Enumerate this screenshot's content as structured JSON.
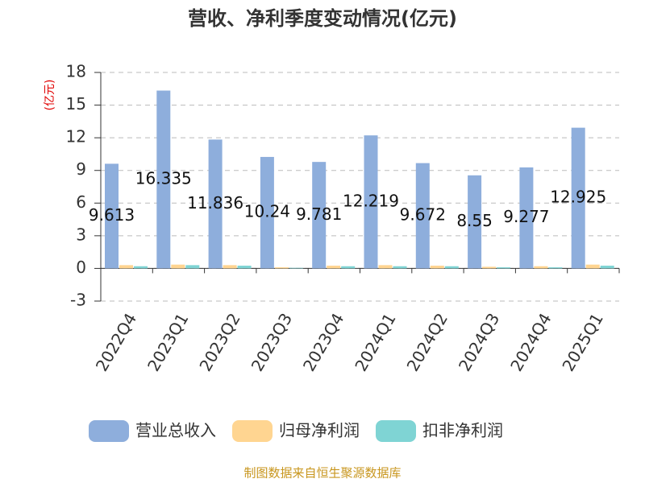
{
  "chart_data": {
    "type": "bar",
    "title": "营收、净利季度变动情况(亿元)",
    "y_unit": "(亿元)",
    "source": "制图数据来自恒生聚源数据库",
    "categories": [
      "2022Q4",
      "2023Q1",
      "2023Q2",
      "2023Q3",
      "2023Q4",
      "2024Q1",
      "2024Q2",
      "2024Q3",
      "2024Q4",
      "2025Q1"
    ],
    "series": [
      {
        "name": "营业总收入",
        "color": "#8eaedc",
        "values": [
          9.613,
          16.335,
          11.836,
          10.24,
          9.781,
          12.219,
          9.672,
          8.55,
          9.277,
          12.925
        ]
      },
      {
        "name": "归母净利润",
        "color": "#ffd591",
        "values": [
          0.3,
          0.35,
          0.3,
          0.1,
          0.25,
          0.3,
          0.25,
          0.15,
          0.2,
          0.35
        ]
      },
      {
        "name": "扣非净利润",
        "color": "#7fd4d4",
        "values": [
          0.2,
          0.3,
          0.25,
          0.05,
          0.2,
          0.2,
          0.2,
          0.1,
          0.1,
          0.25
        ]
      }
    ],
    "ylim": [
      -3,
      18
    ],
    "yticks": [
      -3,
      0,
      3,
      6,
      9,
      12,
      15,
      18
    ],
    "grid": true
  }
}
